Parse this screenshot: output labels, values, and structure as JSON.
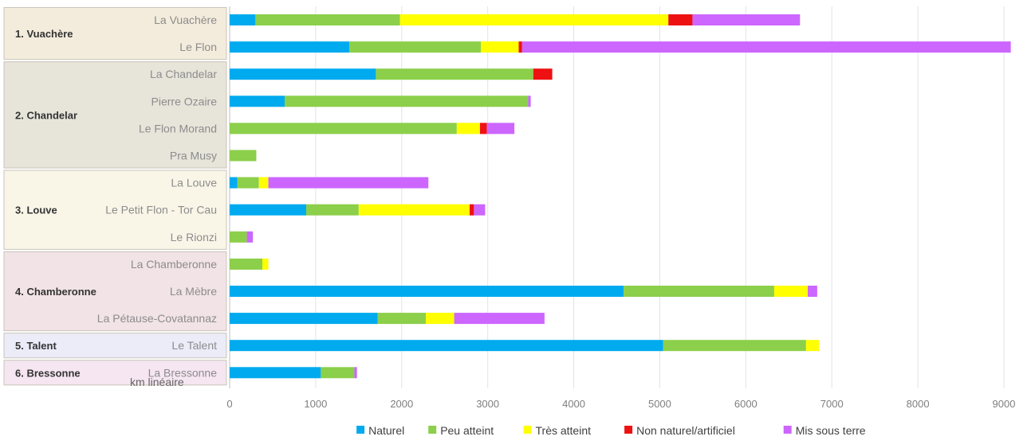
{
  "chart_data": {
    "type": "bar",
    "orientation": "horizontal",
    "stacked": true,
    "categories": [
      "La Vuachère",
      "Le Flon",
      "La Chandelar",
      "Pierre Ozaire",
      "Le Flon Morand",
      "Pra Musy",
      "La Louve",
      "Le Petit Flon - Tor Cau",
      "Le Rionzi",
      "La Chamberonne",
      "La Mèbre",
      "La Pétause-Covatannaz",
      "Le  Talent",
      "La Bressonne"
    ],
    "groups": [
      {
        "label": "1. Vuachère",
        "categories": [
          "La Vuachère",
          "Le Flon"
        ],
        "color": "#f3ecdc"
      },
      {
        "label": "2. Chandelar",
        "categories": [
          "La Chandelar",
          "Pierre Ozaire",
          "Le Flon Morand",
          "Pra Musy"
        ],
        "color": "#e7e4da"
      },
      {
        "label": "3. Louve",
        "categories": [
          "La Louve",
          "Le Petit Flon - Tor Cau",
          "Le Rionzi"
        ],
        "color": "#f9f6e8"
      },
      {
        "label": "4. Chamberonne",
        "categories": [
          "La Chamberonne",
          "La Mèbre",
          "La Pétause-Covatannaz"
        ],
        "color": "#f2e3e7"
      },
      {
        "label": "5. Talent",
        "categories": [
          "Le  Talent"
        ],
        "color": "#ecebf8"
      },
      {
        "label": "6. Bressonne",
        "categories": [
          "La Bressonne"
        ],
        "color": "#f5e6f1"
      }
    ],
    "series": [
      {
        "name": "Naturel",
        "color": "#00aaee",
        "values": [
          300,
          1390,
          1700,
          640,
          0,
          0,
          90,
          890,
          0,
          0,
          4580,
          1720,
          5040,
          1060
        ]
      },
      {
        "name": "Peu atteint",
        "color": "#8ccf4a",
        "values": [
          1680,
          1530,
          1830,
          2830,
          2640,
          310,
          250,
          610,
          200,
          380,
          1750,
          560,
          1660,
          390
        ]
      },
      {
        "name": "Très atteint",
        "color": "#ffff00",
        "values": [
          3120,
          440,
          0,
          0,
          270,
          0,
          110,
          1290,
          0,
          70,
          390,
          330,
          150,
          0
        ]
      },
      {
        "name": "Non naturel/artificiel",
        "color": "#ee1111",
        "values": [
          280,
          40,
          220,
          0,
          80,
          0,
          0,
          50,
          0,
          0,
          0,
          0,
          0,
          0
        ]
      },
      {
        "name": "Mis sous terre",
        "color": "#cc66ff",
        "values": [
          1250,
          5680,
          0,
          30,
          320,
          0,
          1860,
          130,
          70,
          0,
          110,
          1050,
          0,
          30
        ]
      }
    ],
    "xlabel": "km linéaire",
    "xlim": [
      0,
      9000
    ],
    "xticks": [
      0,
      1000,
      2000,
      3000,
      4000,
      5000,
      6000,
      7000,
      8000,
      9000
    ],
    "grid": "vertical",
    "legend_position": "bottom"
  }
}
